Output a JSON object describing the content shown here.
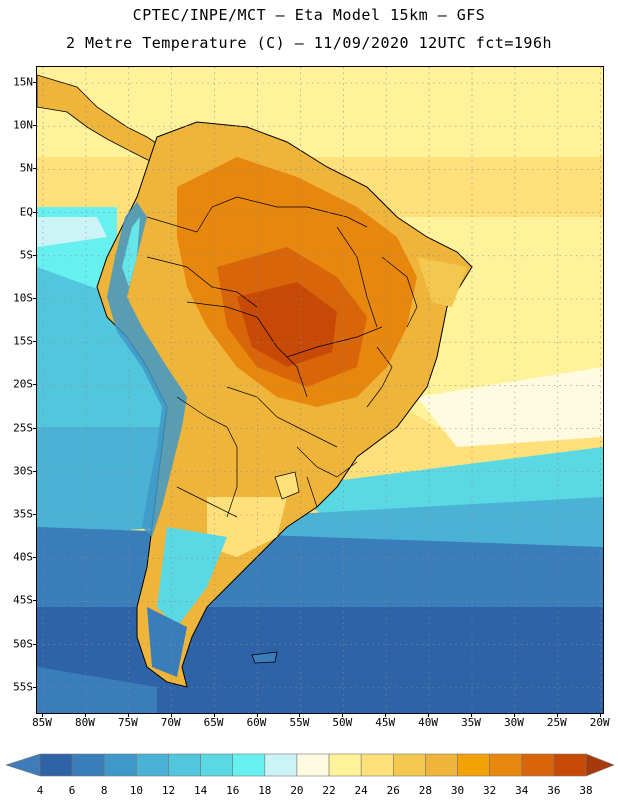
{
  "header": {
    "line1": "CPTEC/INPE/MCT –  Eta Model 15km – GFS",
    "line2": "2 Metre Temperature (C) – 11/09/2020 12UTC fct=196h"
  },
  "map": {
    "lat_labels": [
      "15N",
      "10N",
      "5N",
      "EQ",
      "5S",
      "10S",
      "15S",
      "20S",
      "25S",
      "30S",
      "35S",
      "40S",
      "45S",
      "50S",
      "55S"
    ],
    "lon_labels": [
      "85W",
      "80W",
      "75W",
      "70W",
      "65W",
      "60W",
      "55W",
      "50W",
      "45W",
      "40W",
      "35W",
      "30W",
      "25W",
      "20W"
    ],
    "region": "South America"
  },
  "colorbar": {
    "levels": [
      "4",
      "6",
      "8",
      "10",
      "12",
      "14",
      "16",
      "18",
      "20",
      "22",
      "24",
      "26",
      "28",
      "30",
      "32",
      "34",
      "36",
      "38"
    ],
    "colors": {
      "under": "#3f7dba",
      "bins": [
        "#2f63a8",
        "#3a7dbb",
        "#3f98c8",
        "#4ab2d4",
        "#52c6dc",
        "#5ad8e4",
        "#66f0f0",
        "#ccf4f7",
        "#fffbe0",
        "#fff29a",
        "#ffe07a",
        "#f4c74f",
        "#efb53a",
        "#f2a106",
        "#e8870d",
        "#d9650a",
        "#c84905"
      ],
      "over": "#a8390a"
    }
  },
  "legend_palette": {
    "ocean_cold": "#2f63a8",
    "ocean_mid": "#4ab2d4",
    "ocean_warm": "#66f0f0",
    "subtropical": "#ccf4f7",
    "atlantic_n": "#ffe07a",
    "land_warm": "#efb53a",
    "land_hot": "#e8870d",
    "land_vhot": "#c84905",
    "andes": "#3f98c8"
  }
}
